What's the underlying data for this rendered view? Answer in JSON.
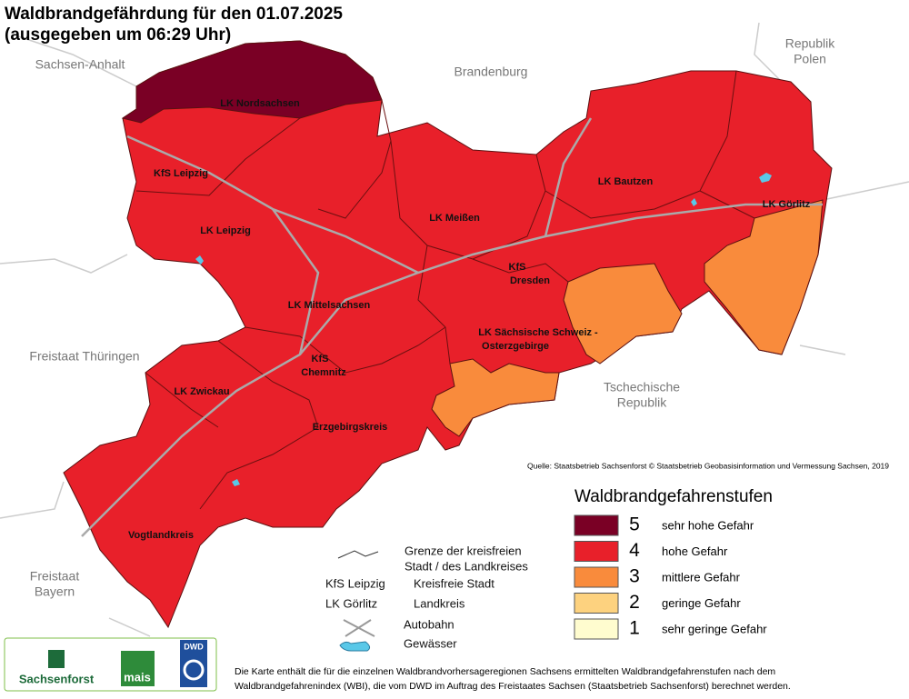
{
  "header": {
    "title_line1": "Waldbrandgefährdung  für den  01.07.2025",
    "title_line2": "(ausgegeben um 06:29 Uhr)"
  },
  "neighbors": {
    "sachsen_anhalt": "Sachsen-Anhalt",
    "brandenburg": "Brandenburg",
    "polen": [
      "Republik",
      "Polen"
    ],
    "thueringen": "Freistaat Thüringen",
    "tschechien": [
      "Tschechische",
      "Republik"
    ],
    "bayern": [
      "Freistaat",
      "Bayern"
    ]
  },
  "regions": {
    "nordsachsen": "LK Nordsachsen",
    "kfs_leipzig": "KfS Leipzig",
    "lk_leipzig": "LK Leipzig",
    "meissen": "LK Meißen",
    "bautzen": "LK Bautzen",
    "goerlitz": "LK Görlitz",
    "dresden": [
      "KfS",
      "Dresden"
    ],
    "mittelsachsen": "LK Mittelsachsen",
    "saechsische_schweiz": [
      "LK Sächsische Schweiz -",
      "Osterzgebirge"
    ],
    "chemnitz": [
      "KfS",
      "Chemnitz"
    ],
    "zwickau": "LK Zwickau",
    "erzgebirge": "Erzgebirgskreis",
    "vogtland": "Vogtlandkreis"
  },
  "source": "Quelle: Staatsbetrieb Sachsenforst  © Staatsbetrieb Geobasisinformation und Vermessung Sachsen, 2019",
  "legend": {
    "title": "Waldbrandgefahrenstufen",
    "levels": [
      {
        "level": 5,
        "label": "sehr hohe Gefahr",
        "color": "#7a0025"
      },
      {
        "level": 4,
        "label": "hohe Gefahr",
        "color": "#e8202a"
      },
      {
        "level": 3,
        "label": "mittlere Gefahr",
        "color": "#f98b3c"
      },
      {
        "level": 2,
        "label": "geringe Gefahr",
        "color": "#fdd27f"
      },
      {
        "level": 1,
        "label": "sehr geringe Gefahr",
        "color": "#fffccf"
      }
    ]
  },
  "key": {
    "border": [
      "Grenze der kreisfreien",
      "Stadt / des Landkreises"
    ],
    "kfs_sample": "KfS Leipzig",
    "kfs": "Kreisfreie Stadt",
    "lk_sample": "LK Görlitz",
    "lk": "Landkreis",
    "autobahn": "Autobahn",
    "gewaesser": "Gewässer"
  },
  "logos": {
    "sachsenforst": "Sachsenforst",
    "mais": "mais",
    "dwd": "DWD"
  },
  "footnote": [
    "Die Karte enthält die für die einzelnen Waldbrandvorhersageregionen Sachsens ermittelten Waldbrandgefahrenstufen nach dem",
    "Waldbrandgefahrenindex (WBI), die vom DWD im Auftrag des Freistaates Sachsen (Staatsbetrieb Sachsenforst) berechnet werden."
  ]
}
